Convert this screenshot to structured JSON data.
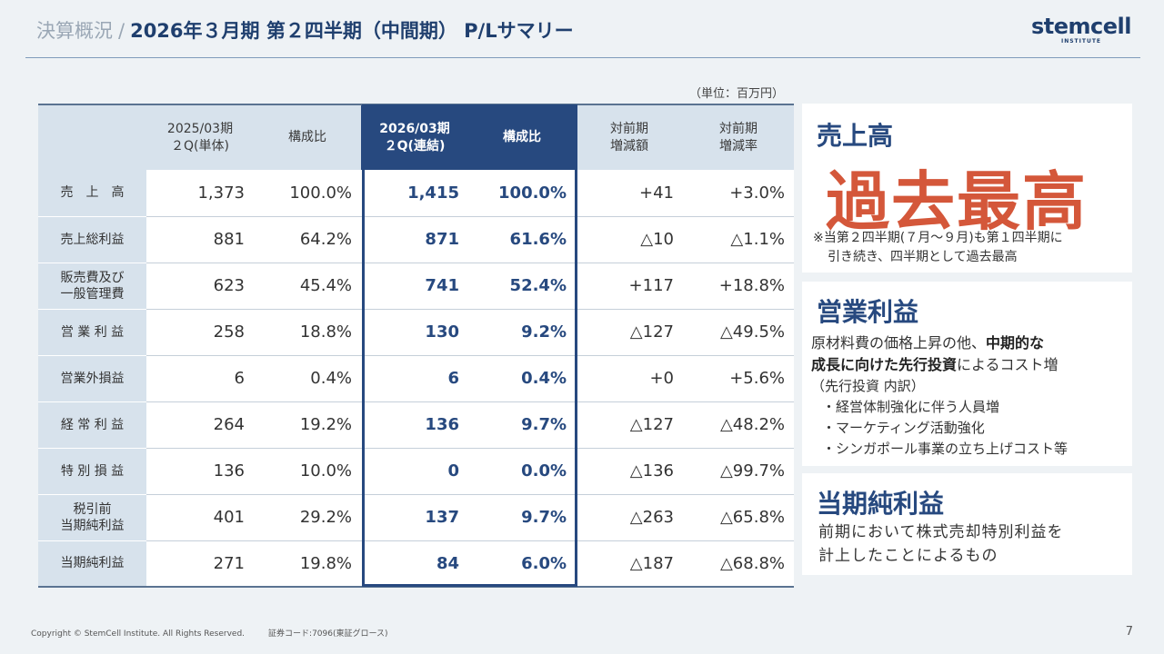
{
  "header": {
    "section": "決算概況",
    "separator": "/",
    "title": "2026年３月期 第２四半期（中間期） P/Lサマリー",
    "logo_text": "stemcell",
    "logo_sub": "INSTITUTE"
  },
  "unit_note": "（単位：百万円）",
  "table": {
    "headers": {
      "prev_period": [
        "2025/03期",
        "２Q(単体)"
      ],
      "prev_ratio": "構成比",
      "curr_period": [
        "2026/03期",
        "２Q(連結)"
      ],
      "curr_ratio": "構成比",
      "diff_amount": [
        "対前期",
        "増減額"
      ],
      "diff_rate": [
        "対前期",
        "増減率"
      ]
    },
    "rows": [
      {
        "label": [
          "売　上　高"
        ],
        "prev": "1,373",
        "prev_ratio": "100.0%",
        "curr": "1,415",
        "curr_ratio": "100.0%",
        "diff": "+41",
        "rate": "+3.0%"
      },
      {
        "label": [
          "売上総利益"
        ],
        "prev": "881",
        "prev_ratio": "64.2%",
        "curr": "871",
        "curr_ratio": "61.6%",
        "diff": "△10",
        "rate": "△1.1%"
      },
      {
        "label": [
          "販売費及び",
          "一般管理費"
        ],
        "prev": "623",
        "prev_ratio": "45.4%",
        "curr": "741",
        "curr_ratio": "52.4%",
        "diff": "+117",
        "rate": "+18.8%"
      },
      {
        "label": [
          "営 業 利 益"
        ],
        "prev": "258",
        "prev_ratio": "18.8%",
        "curr": "130",
        "curr_ratio": "9.2%",
        "diff": "△127",
        "rate": "△49.5%"
      },
      {
        "label": [
          "営業外損益"
        ],
        "prev": "6",
        "prev_ratio": "0.4%",
        "curr": "6",
        "curr_ratio": "0.4%",
        "diff": "+0",
        "rate": "+5.6%"
      },
      {
        "label": [
          "経 常 利 益"
        ],
        "prev": "264",
        "prev_ratio": "19.2%",
        "curr": "136",
        "curr_ratio": "9.7%",
        "diff": "△127",
        "rate": "△48.2%"
      },
      {
        "label": [
          "特 別 損 益"
        ],
        "prev": "136",
        "prev_ratio": "10.0%",
        "curr": "0",
        "curr_ratio": "0.0%",
        "diff": "△136",
        "rate": "△99.7%"
      },
      {
        "label": [
          "税引前",
          "当期純利益"
        ],
        "prev": "401",
        "prev_ratio": "29.2%",
        "curr": "137",
        "curr_ratio": "9.7%",
        "diff": "△263",
        "rate": "△65.8%"
      },
      {
        "label": [
          "当期純利益"
        ],
        "prev": "271",
        "prev_ratio": "19.8%",
        "curr": "84",
        "curr_ratio": "6.0%",
        "diff": "△187",
        "rate": "△68.8%"
      }
    ]
  },
  "cards": {
    "sales": {
      "title": "売上高",
      "highlight": "過去最高",
      "note_line1": "※当第２四半期(７月～９月)も第１四半期に",
      "note_line2": "引き続き、四半期として過去最高"
    },
    "operating": {
      "title": "営業利益",
      "text_a": "原材料費の価格上昇の他、",
      "text_b_bold": "中期的な",
      "text_c_bold": "成長に向けた先行投資",
      "text_d": "によるコスト増",
      "sub_head": "（先行投資 内訳）",
      "items": [
        "・経営体制強化に伴う人員増",
        "・マーケティング活動強化",
        "・シンガポール事業の立ち上げコスト等"
      ]
    },
    "net": {
      "title": "当期純利益",
      "line1": "前期において株式売却特別利益を",
      "line2": "計上したことによるもの"
    }
  },
  "footer": {
    "copyright": "Copyright © StemCell Institute. All Rights Reserved.",
    "code": "証券コード:7096(東証グロース)",
    "page": "7"
  }
}
